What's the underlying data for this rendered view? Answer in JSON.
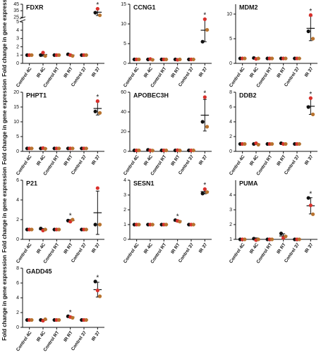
{
  "chart_data": [
    {
      "type": "dot",
      "title": "FDXR",
      "ylabel": "Fold change in gene expression",
      "categories": [
        "Control 4C",
        "IR 4C",
        "Control RT",
        "IR RT",
        "Control 37",
        "IR 37"
      ],
      "series": [
        {
          "color": "#111111",
          "values": [
            1,
            1,
            1,
            1.1,
            1,
            32
          ]
        },
        {
          "color": "#d9302b",
          "values": [
            1,
            1.3,
            1,
            1.0,
            1,
            38
          ]
        },
        {
          "color": "#b8732f",
          "values": [
            1,
            0.9,
            1,
            0.9,
            1,
            28
          ]
        }
      ],
      "means": [
        1,
        1.07,
        1,
        1.0,
        1,
        32.7
      ],
      "sd": [
        0,
        0.2,
        0,
        0.1,
        0,
        5
      ],
      "stars": [
        null,
        null,
        null,
        null,
        null,
        "*"
      ],
      "ylim": [
        0,
        45
      ],
      "yticks": [
        0,
        1,
        2,
        3,
        4,
        5,
        25,
        35,
        45
      ],
      "axis_break": [
        5,
        25
      ]
    },
    {
      "type": "dot",
      "title": "CCNG1",
      "categories": [
        "Control 4C",
        "IR 4C",
        "Control RT",
        "IR RT",
        "Control 37",
        "IR 37"
      ],
      "series": [
        {
          "color": "#111111",
          "values": [
            1,
            1.0,
            1,
            1.0,
            1,
            5.5
          ]
        },
        {
          "color": "#d9302b",
          "values": [
            1,
            1.1,
            1,
            0.9,
            1,
            11.2
          ]
        },
        {
          "color": "#b8732f",
          "values": [
            1,
            0.9,
            1,
            1.0,
            1,
            8.5
          ]
        }
      ],
      "means": [
        1,
        1.0,
        1,
        0.97,
        1,
        8.4
      ],
      "sd": [
        0,
        0.1,
        0,
        0.06,
        0,
        2.9
      ],
      "stars": [
        null,
        null,
        null,
        null,
        null,
        "*"
      ],
      "ylim": [
        0,
        15
      ],
      "yticks": [
        0,
        5,
        10,
        15
      ]
    },
    {
      "type": "dot",
      "title": "MDM2",
      "categories": [
        "Control 4C",
        "IR 4C",
        "Control RT",
        "IR RT",
        "Control 37",
        "IR 37"
      ],
      "series": [
        {
          "color": "#111111",
          "values": [
            1,
            1.1,
            1,
            1.0,
            1,
            6.5
          ]
        },
        {
          "color": "#d9302b",
          "values": [
            1,
            0.9,
            1,
            1.0,
            1,
            9.8
          ]
        },
        {
          "color": "#b8732f",
          "values": [
            1,
            1.0,
            1,
            1.0,
            1,
            5.0
          ]
        }
      ],
      "means": [
        1,
        1.0,
        1,
        1.0,
        1,
        7.1
      ],
      "sd": [
        0,
        0.1,
        0,
        0,
        0,
        2.5
      ],
      "stars": [
        null,
        null,
        null,
        null,
        null,
        "*"
      ],
      "ylim": [
        0,
        12
      ],
      "yticks": [
        0,
        5,
        10
      ]
    },
    {
      "type": "dot",
      "title": "PHPT1",
      "ylabel": "Fold change in gene expression",
      "categories": [
        "Control 4C",
        "IR 4C",
        "Control RT",
        "IR RT",
        "Control 37",
        "IR 37"
      ],
      "series": [
        {
          "color": "#111111",
          "values": [
            1,
            1.0,
            1,
            1.0,
            1,
            13.5
          ]
        },
        {
          "color": "#d9302b",
          "values": [
            1,
            1.1,
            1,
            1.0,
            1,
            17
          ]
        },
        {
          "color": "#b8732f",
          "values": [
            1,
            0.9,
            1,
            1.0,
            1,
            13
          ]
        }
      ],
      "means": [
        1,
        1.0,
        1,
        1.0,
        1,
        14.5
      ],
      "sd": [
        0,
        0.1,
        0,
        0,
        0,
        2.2
      ],
      "stars": [
        null,
        null,
        null,
        null,
        null,
        "*"
      ],
      "ylim": [
        0,
        20
      ],
      "yticks": [
        0,
        5,
        10,
        15,
        20
      ]
    },
    {
      "type": "dot",
      "title": "APOBEC3H",
      "categories": [
        "Control 4C",
        "IR 4C",
        "Control RT",
        "IR RT",
        "Control 37",
        "IR 37"
      ],
      "series": [
        {
          "color": "#111111",
          "values": [
            1,
            1.5,
            1,
            1.0,
            1,
            30
          ]
        },
        {
          "color": "#d9302b",
          "values": [
            1,
            1.0,
            1,
            1.2,
            1,
            55
          ]
        },
        {
          "color": "#b8732f",
          "values": [
            1,
            0.8,
            1,
            0.9,
            1,
            25
          ]
        }
      ],
      "means": [
        1,
        1.1,
        1,
        1.03,
        1,
        36.7
      ],
      "sd": [
        0,
        0.3,
        0,
        0.2,
        0,
        16
      ],
      "stars": [
        null,
        null,
        null,
        null,
        null,
        "*"
      ],
      "ylim": [
        0,
        60
      ],
      "yticks": [
        0,
        20,
        40,
        60
      ]
    },
    {
      "type": "dot",
      "title": "DDB2",
      "categories": [
        "Control 4C",
        "IR 4C",
        "Control RT",
        "IR RT",
        "Control 37",
        "IR 37"
      ],
      "series": [
        {
          "color": "#111111",
          "values": [
            1,
            1.0,
            1,
            1.1,
            1,
            6.0
          ]
        },
        {
          "color": "#d9302b",
          "values": [
            1,
            1.1,
            1,
            1.0,
            1,
            7.2
          ]
        },
        {
          "color": "#b8732f",
          "values": [
            1,
            0.9,
            1,
            1.0,
            1,
            5.0
          ]
        }
      ],
      "means": [
        1,
        1.0,
        1,
        1.03,
        1,
        6.1
      ],
      "sd": [
        0,
        0.1,
        0,
        0.1,
        0,
        1.1
      ],
      "stars": [
        null,
        null,
        null,
        null,
        null,
        "*"
      ],
      "ylim": [
        0,
        8
      ],
      "yticks": [
        0,
        2,
        4,
        6,
        8
      ]
    },
    {
      "type": "dot",
      "title": "P21",
      "ylabel": "Fold change in gene expression",
      "categories": [
        "Control 4C",
        "IR 4C",
        "Control RT",
        "IR RT",
        "Control 37",
        "IR 37"
      ],
      "series": [
        {
          "color": "#111111",
          "values": [
            1,
            1.1,
            1,
            1.9,
            1,
            1.5
          ]
        },
        {
          "color": "#d9302b",
          "values": [
            1,
            0.9,
            1,
            1.8,
            1,
            5.2
          ]
        },
        {
          "color": "#b8732f",
          "values": [
            1,
            1.0,
            1,
            2.0,
            1,
            1.5
          ]
        }
      ],
      "means": [
        1,
        1.0,
        1,
        1.9,
        1,
        2.7
      ],
      "sd": [
        0,
        0.1,
        0,
        0.1,
        0,
        2.2
      ],
      "stars": [
        null,
        null,
        null,
        "*",
        null,
        null
      ],
      "ylim": [
        0,
        6
      ],
      "yticks": [
        0,
        2,
        4,
        6
      ]
    },
    {
      "type": "dot",
      "title": "SESN1",
      "categories": [
        "Control 4C",
        "IR 4C",
        "Control RT",
        "IR RT",
        "Control 37",
        "IR 37"
      ],
      "series": [
        {
          "color": "#111111",
          "values": [
            1,
            1.0,
            1,
            1.3,
            1,
            3.1
          ]
        },
        {
          "color": "#d9302b",
          "values": [
            1,
            1.0,
            1,
            1.25,
            1,
            3.4
          ]
        },
        {
          "color": "#b8732f",
          "values": [
            1,
            1.0,
            1,
            1.2,
            1,
            3.2
          ]
        }
      ],
      "means": [
        1,
        1.0,
        1,
        1.25,
        1,
        3.23
      ],
      "sd": [
        0,
        0,
        0,
        0.05,
        0,
        0.15
      ],
      "stars": [
        null,
        null,
        null,
        "*",
        null,
        "*"
      ],
      "ylim": [
        0,
        4
      ],
      "yticks": [
        0,
        1,
        2,
        3,
        4
      ]
    },
    {
      "type": "dot",
      "title": "PUMA",
      "categories": [
        "Control 4C",
        "IR 4C",
        "Control RT",
        "IR RT",
        "Control 37",
        "IR 37"
      ],
      "series": [
        {
          "color": "#111111",
          "values": [
            1,
            1.05,
            1,
            1.4,
            1,
            3.8
          ]
        },
        {
          "color": "#d9302b",
          "values": [
            1,
            0.95,
            1,
            1.1,
            1,
            3.3
          ]
        },
        {
          "color": "#b8732f",
          "values": [
            1,
            1.0,
            1,
            1.2,
            1,
            2.7
          ]
        }
      ],
      "means": [
        1,
        1.0,
        1,
        1.23,
        1,
        3.27
      ],
      "sd": [
        0,
        0.1,
        0,
        0.15,
        0,
        0.55
      ],
      "stars": [
        null,
        null,
        null,
        null,
        null,
        "*"
      ],
      "ylim": [
        1,
        5
      ],
      "yticks": [
        1,
        2,
        3,
        4
      ]
    },
    {
      "type": "dot",
      "title": "GADD45",
      "ylabel": "Fold change in gene expression",
      "categories": [
        "Control 4C",
        "IR 4C",
        "Control RT",
        "IR RT",
        "Control 37",
        "IR 37"
      ],
      "series": [
        {
          "color": "#111111",
          "values": [
            1,
            1.0,
            1,
            1.5,
            1,
            6.2
          ]
        },
        {
          "color": "#d9302b",
          "values": [
            1,
            0.9,
            1,
            1.4,
            1,
            5.0
          ]
        },
        {
          "color": "#b8732f",
          "values": [
            1,
            1.1,
            1,
            1.3,
            1,
            4.2
          ]
        }
      ],
      "means": [
        1,
        1.0,
        1,
        1.4,
        1,
        5.1
      ],
      "sd": [
        0,
        0.1,
        0,
        0.1,
        0,
        1.0
      ],
      "stars": [
        null,
        null,
        null,
        "*",
        null,
        "*"
      ],
      "ylim": [
        0,
        8
      ],
      "yticks": [
        0,
        2,
        4,
        6,
        8
      ]
    }
  ]
}
